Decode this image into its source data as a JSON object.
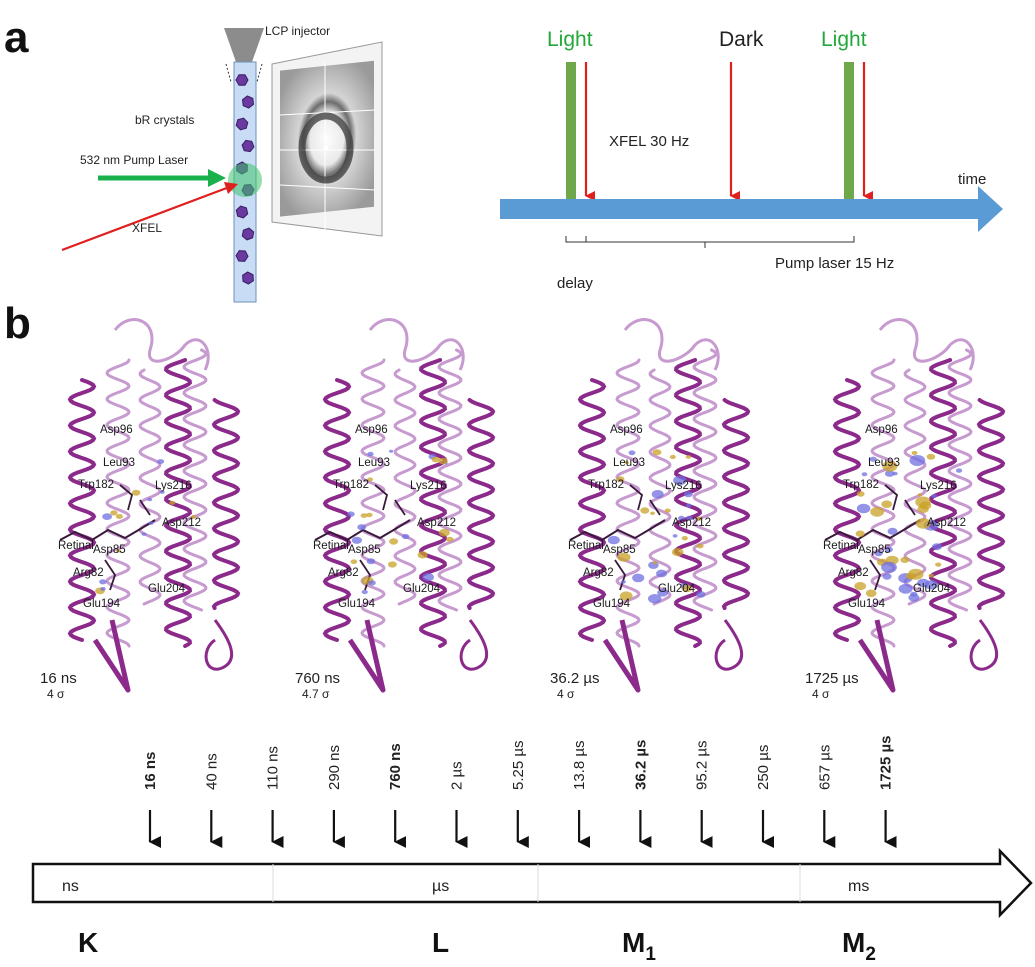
{
  "panel_a": {
    "label": "a",
    "setup": {
      "injector_label": "LCP injector",
      "crystals_label": "bR crystals",
      "pump_label": "532 nm  Pump Laser",
      "xfel_label": "XFEL",
      "colors": {
        "pump": "#1ab04c",
        "xfel": "#e01f1f",
        "jet": "#c9dcf5",
        "crystal": "#6b3aa0"
      }
    },
    "timing": {
      "light1": "Light",
      "dark": "Dark",
      "light2": "Light",
      "xfel_label": "XFEL 30 Hz",
      "time_label": "time",
      "delay_label": "delay",
      "pump_rate_label": "Pump laser 15 Hz",
      "colors": {
        "light_text": "#22a83a",
        "bar": "#6fa84a",
        "arrow": "#e01f1f",
        "timeline": "#5b9bd5"
      }
    }
  },
  "panel_b": {
    "label": "b",
    "residues": [
      "Asp96",
      "Leu93",
      "Trp182",
      "Lys216",
      "Asp212",
      "Retinal",
      "Asp85",
      "Arg82",
      "Glu194",
      "Glu204"
    ],
    "structures": [
      {
        "time": "16 ns",
        "sigma": "4 σ",
        "density": 1
      },
      {
        "time": "760 ns",
        "sigma": "4.7 σ",
        "density": 2
      },
      {
        "time": "36.2 µs",
        "sigma": "4 σ",
        "density": 3
      },
      {
        "time": "1725 µs",
        "sigma": "4 σ",
        "density": 4
      }
    ],
    "colors": {
      "helix": "#8b2a8b",
      "helix_light": "#c79ad0",
      "density_pos": "#c9a227",
      "density_neg": "#6f6fe0"
    },
    "timepoints": [
      {
        "label": "16 ns",
        "bold": true
      },
      {
        "label": "40 ns",
        "bold": false
      },
      {
        "label": "110 ns",
        "bold": false
      },
      {
        "label": "290 ns",
        "bold": false
      },
      {
        "label": "760 ns",
        "bold": true
      },
      {
        "label": "2 µs",
        "bold": false
      },
      {
        "label": "5.25 µs",
        "bold": false
      },
      {
        "label": "13.8 µs",
        "bold": false
      },
      {
        "label": "36.2 µs",
        "bold": true
      },
      {
        "label": "95.2 µs",
        "bold": false
      },
      {
        "label": "250 µs",
        "bold": false
      },
      {
        "label": "657 µs",
        "bold": false
      },
      {
        "label": "1725 µs",
        "bold": true
      }
    ],
    "scale_labels": {
      "ns": "ns",
      "us": "µs",
      "ms": "ms"
    },
    "states": {
      "k": "K",
      "l": "L",
      "m1": "M",
      "m1_sub": "1",
      "m2": "M",
      "m2_sub": "2"
    }
  }
}
